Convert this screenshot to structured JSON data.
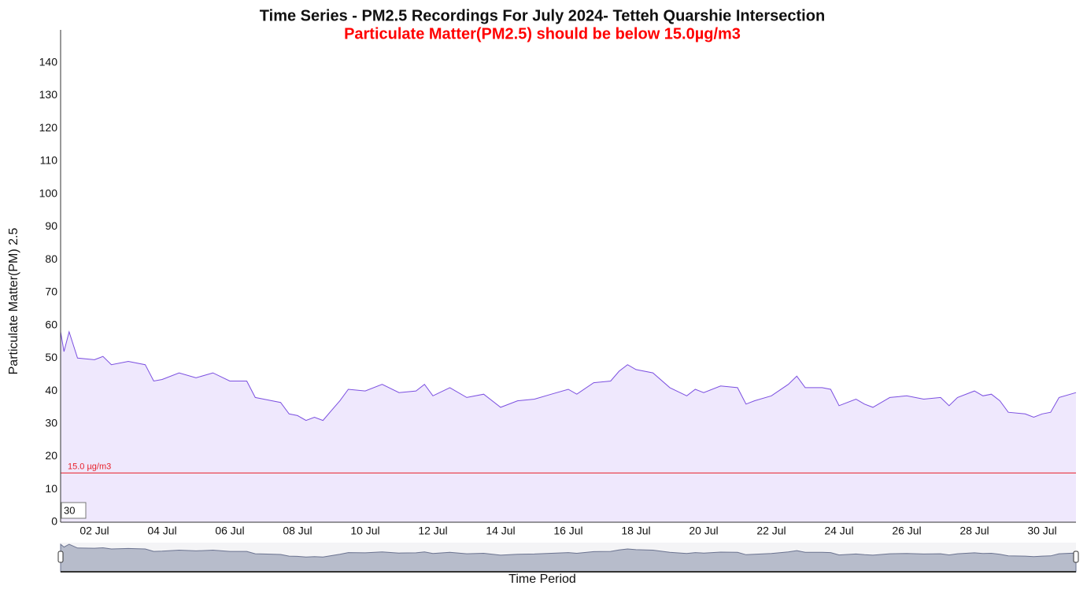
{
  "chart_data": {
    "type": "area",
    "title": "Time Series - PM2.5 Recordings For July 2024- Tetteh Quarshie Intersection",
    "subtitle": "Particulate Matter(PM2.5) should be below 15.0µg/m3",
    "x_label": "Time Period",
    "y_label": "Particulate Matter(PM) 2.5",
    "x": [
      1.0,
      1.1,
      1.25,
      1.5,
      2.0,
      2.25,
      2.5,
      3.0,
      3.5,
      3.75,
      4.0,
      4.5,
      5.0,
      5.5,
      6.0,
      6.5,
      6.75,
      7.0,
      7.5,
      7.75,
      8.0,
      8.25,
      8.5,
      8.75,
      9.0,
      9.25,
      9.5,
      10.0,
      10.5,
      11.0,
      11.5,
      11.75,
      12.0,
      12.5,
      13.0,
      13.5,
      14.0,
      14.5,
      15.0,
      15.5,
      16.0,
      16.25,
      16.75,
      17.25,
      17.5,
      17.75,
      18.0,
      18.5,
      19.0,
      19.5,
      19.75,
      20.0,
      20.5,
      21.0,
      21.25,
      21.5,
      22.0,
      22.5,
      22.75,
      23.0,
      23.5,
      23.75,
      24.0,
      24.5,
      24.75,
      25.0,
      25.5,
      26.0,
      26.5,
      27.0,
      27.25,
      27.5,
      28.0,
      28.25,
      28.5,
      28.75,
      29.0,
      29.5,
      29.75,
      30.0,
      30.25,
      30.5,
      31.0
    ],
    "series": [
      {
        "color": "#7b4fe0",
        "fill": "#efe8fd",
        "values": [
          58,
          52,
          58,
          50,
          49.5,
          50.5,
          48,
          49,
          48,
          43,
          43.5,
          45.5,
          44,
          45.5,
          43,
          43,
          38,
          37.5,
          36.5,
          33,
          32.5,
          31,
          32,
          31,
          34,
          37,
          40.5,
          40,
          42,
          39.5,
          40,
          42,
          38.5,
          41,
          38,
          39,
          35,
          37,
          37.5,
          39,
          40.5,
          39,
          42.5,
          43,
          46,
          48,
          46.5,
          45.5,
          41,
          38.5,
          40.5,
          39.5,
          41.5,
          41,
          36,
          37,
          38.5,
          42,
          44.5,
          41,
          41,
          40.5,
          35.5,
          37.5,
          36,
          35,
          38,
          38.5,
          37.5,
          38,
          35.5,
          38,
          40,
          38.5,
          39,
          37,
          33.5,
          33,
          32,
          33,
          33.5,
          38,
          39.5
        ]
      }
    ],
    "xlim": [
      1,
      31
    ],
    "xticks": [
      {
        "value": 2,
        "label": "02 Jul"
      },
      {
        "value": 4,
        "label": "04 Jul"
      },
      {
        "value": 6,
        "label": "06 Jul"
      },
      {
        "value": 8,
        "label": "08 Jul"
      },
      {
        "value": 10,
        "label": "10 Jul"
      },
      {
        "value": 12,
        "label": "12 Jul"
      },
      {
        "value": 14,
        "label": "14 Jul"
      },
      {
        "value": 16,
        "label": "16 Jul"
      },
      {
        "value": 18,
        "label": "18 Jul"
      },
      {
        "value": 20,
        "label": "20 Jul"
      },
      {
        "value": 22,
        "label": "22 Jul"
      },
      {
        "value": 24,
        "label": "24 Jul"
      },
      {
        "value": 26,
        "label": "26 Jul"
      },
      {
        "value": 28,
        "label": "28 Jul"
      },
      {
        "value": 30,
        "label": "30 Jul"
      }
    ],
    "ylim": [
      0,
      150
    ],
    "yticks": [
      0,
      10,
      20,
      30,
      40,
      50,
      60,
      70,
      80,
      90,
      100,
      110,
      120,
      130,
      140
    ],
    "reference_line": {
      "value": 15,
      "label": "15.0 µg/m3",
      "color": "#e8202a"
    },
    "window_input": "30"
  }
}
